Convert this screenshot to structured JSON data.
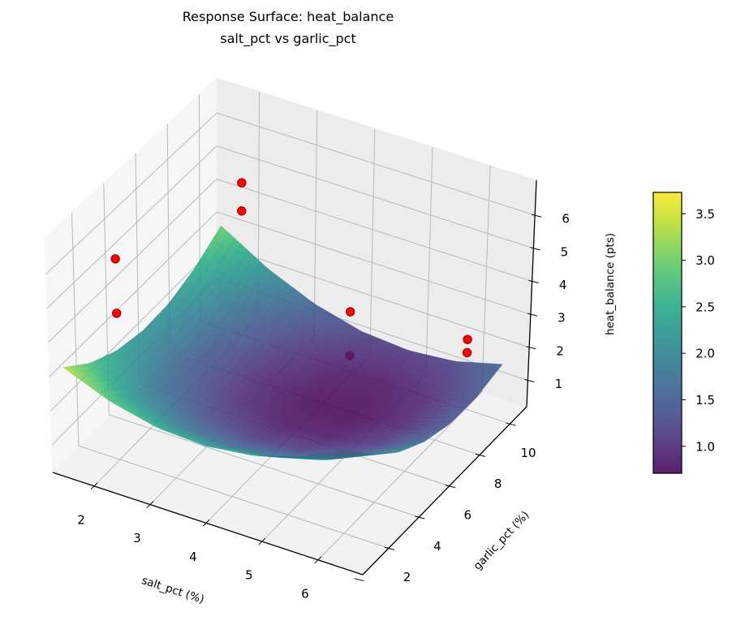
{
  "chart_data": {
    "type": "surface",
    "title": "Response Surface: heat_balance",
    "subtitle": "salt_pct vs garlic_pct",
    "xlabel": "salt_pct (%)",
    "ylabel": "garlic_pct (%)",
    "zlabel": "heat_balance (pts)",
    "xlim": [
      1.26,
      6.8
    ],
    "ylim": [
      2.29,
      13.1
    ],
    "zlim": [
      0.2,
      7.06
    ],
    "xticks": [
      2,
      3,
      4,
      5,
      6
    ],
    "xtick_labels": [
      "2",
      "3",
      "4",
      "5",
      "6"
    ],
    "yticks": [
      2,
      4,
      6,
      8,
      10,
      12
    ],
    "ytick_labels": [
      "2",
      "4",
      "6",
      "8",
      "10",
      ""
    ],
    "zticks": [
      1,
      2,
      3,
      4,
      5,
      6
    ],
    "ztick_labels": [
      "1",
      "2",
      "3",
      "4",
      "5",
      "6"
    ],
    "grid": true,
    "colormap": "viridis",
    "surface": {
      "x_range": [
        1.5,
        6.5
      ],
      "y_range": [
        2.3,
        12.5
      ],
      "z_grid": [
        [
          3.4,
          2.84,
          2.52,
          2.45,
          2.62,
          3.04,
          3.7
        ],
        [
          2.76,
          2.16,
          1.79,
          1.67,
          1.8,
          2.17,
          2.78
        ],
        [
          2.36,
          1.7,
          1.29,
          1.12,
          1.2,
          1.52,
          2.09
        ],
        [
          2.18,
          1.47,
          1.01,
          0.8,
          0.83,
          1.11,
          1.63
        ],
        [
          2.22,
          1.47,
          0.97,
          0.71,
          0.69,
          0.92,
          1.39
        ],
        [
          2.5,
          1.7,
          1.15,
          0.84,
          0.78,
          0.96,
          1.38
        ],
        [
          3.0,
          2.16,
          1.56,
          1.2,
          1.09,
          1.22,
          1.6
        ]
      ],
      "alpha": 0.85
    },
    "scatter": {
      "color": "#ff0000",
      "edge_color": "#8b0000",
      "points": [
        {
          "x": 2,
          "y": 12,
          "z": 4.8
        },
        {
          "x": 2,
          "y": 12,
          "z": 3.95
        },
        {
          "x": 2,
          "y": 4,
          "z": 6.1
        },
        {
          "x": 2,
          "y": 4,
          "z": 4.5
        },
        {
          "x": 5,
          "y": 8,
          "z": 4.4
        },
        {
          "x": 5,
          "y": 8,
          "z": 3.1
        },
        {
          "x": 6,
          "y": 12,
          "z": 2.3
        },
        {
          "x": 6,
          "y": 12,
          "z": 1.9
        }
      ]
    },
    "colorbar": {
      "clim": [
        0.71,
        3.73
      ],
      "ticks": [
        1.0,
        1.5,
        2.0,
        2.5,
        3.0,
        3.5
      ],
      "tick_labels": [
        "1.0",
        "1.5",
        "2.0",
        "2.5",
        "3.0",
        "3.5"
      ]
    }
  }
}
